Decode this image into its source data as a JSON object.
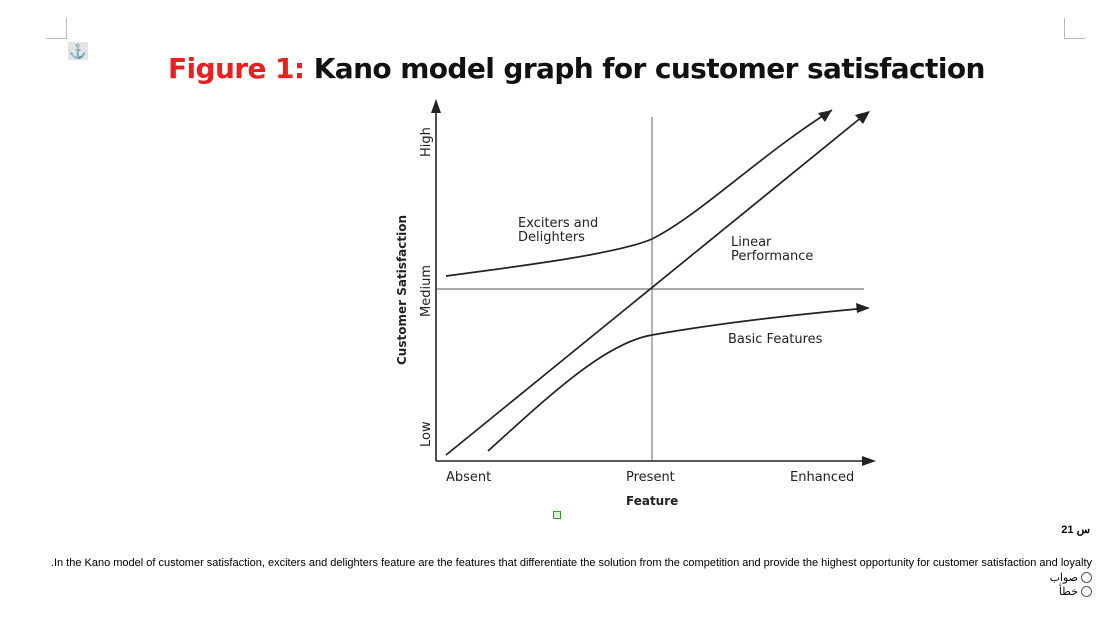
{
  "figure": {
    "title_lead": "Figure 1:",
    "title_rest": "Kano model graph for customer satisfaction"
  },
  "chart_data": {
    "type": "line",
    "title": "",
    "xlabel": "Feature",
    "ylabel": "Customer Satisfaction",
    "x_ticks": [
      "Absent",
      "Present",
      "Enhanced"
    ],
    "y_ticks": [
      "Low",
      "Medium",
      "High"
    ],
    "grid": false,
    "series": [
      {
        "name": "Exciters and Delighters"
      },
      {
        "name": "Linear Performance"
      },
      {
        "name": "Basic Features"
      }
    ],
    "annotations": [
      "Exciters and Delighters",
      "Linear Performance",
      "Basic Features"
    ]
  },
  "question": {
    "number": "س 21",
    "text": ".In the Kano model of customer satisfaction, exciters and delighters feature are the features that differentiate the solution from the competition and provide the highest opportunity for customer satisfaction and loyalty",
    "options": [
      "صواب",
      "خطأ"
    ]
  },
  "icons": {
    "anchor": "anchor-icon",
    "radio": "radio-icon"
  },
  "colors": {
    "title_accent": "#e8201f",
    "title_text": "#111111"
  }
}
